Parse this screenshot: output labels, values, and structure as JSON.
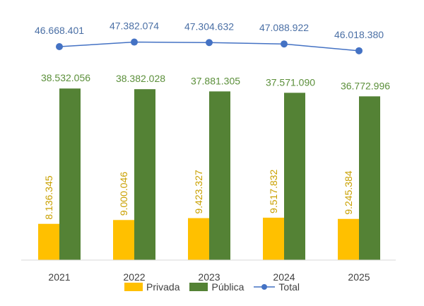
{
  "chart_data": {
    "type": "bar",
    "categories": [
      "2021",
      "2022",
      "2023",
      "2024",
      "2025"
    ],
    "series": [
      {
        "name": "Privada",
        "type": "bar",
        "color": "#FFC000",
        "values": [
          8136345,
          9000046,
          9423327,
          9517832,
          9245384
        ],
        "labels": [
          "8.136.345",
          "9.000.046",
          "9.423.327",
          "9.517.832",
          "9.245.384"
        ],
        "label_color": "#C9A000"
      },
      {
        "name": "Pública",
        "type": "bar",
        "color": "#548235",
        "values": [
          38532056,
          38382028,
          37881305,
          37571090,
          36772996
        ],
        "labels": [
          "38.532.056",
          "38.382.028",
          "37.881.305",
          "37.571.090",
          "36.772.996"
        ],
        "label_color": "#5B8F3A"
      },
      {
        "name": "Total",
        "type": "line",
        "color": "#4472C4",
        "values": [
          46668401,
          47382074,
          47304632,
          47088922,
          46018380
        ],
        "labels": [
          "46.668.401",
          "47.382.074",
          "47.304.632",
          "47.088.922",
          "46.018.380"
        ],
        "label_color": "#4A6FA5"
      }
    ],
    "legend": {
      "position": "bottom"
    },
    "grid": false
  }
}
